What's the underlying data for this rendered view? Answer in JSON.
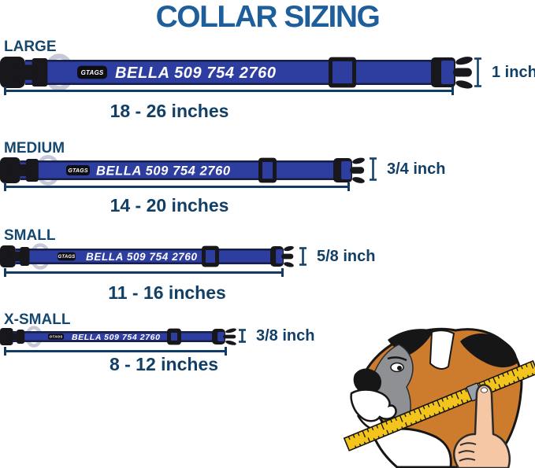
{
  "title": "COLLAR SIZING",
  "collar": {
    "name_text": "BELLA 509 754 2760",
    "brand_tag": "GTAGS"
  },
  "sizes": [
    {
      "label": "LARGE",
      "width_label": "1 inch",
      "range_label": "18 - 26 inches"
    },
    {
      "label": "MEDIUM",
      "width_label": "3/4 inch",
      "range_label": "14 - 20 inches"
    },
    {
      "label": "SMALL",
      "width_label": "5/8 inch",
      "range_label": "11 - 16 inches"
    },
    {
      "label": "X-SMALL",
      "width_label": "3/8 inch",
      "range_label": "8 - 12 inches"
    }
  ],
  "illustration": {
    "icon": "boxer-dog-with-measuring-tape-icon"
  },
  "colors": {
    "title_blue": "#1d5e9b",
    "label_navy": "#16486f",
    "measure_navy": "#123f66",
    "strap_blue": "#2e3da0",
    "strap_edge": "#18204a",
    "hardware_black": "#17171c",
    "ring_silver": "#c6c9d8",
    "collar_text_white": "#ffffff",
    "tape_yellow": "#f2c41c",
    "dog_orange": "#cd7c2e",
    "dog_gray": "#8f9094",
    "hand_skin": "#f6c7a4"
  }
}
